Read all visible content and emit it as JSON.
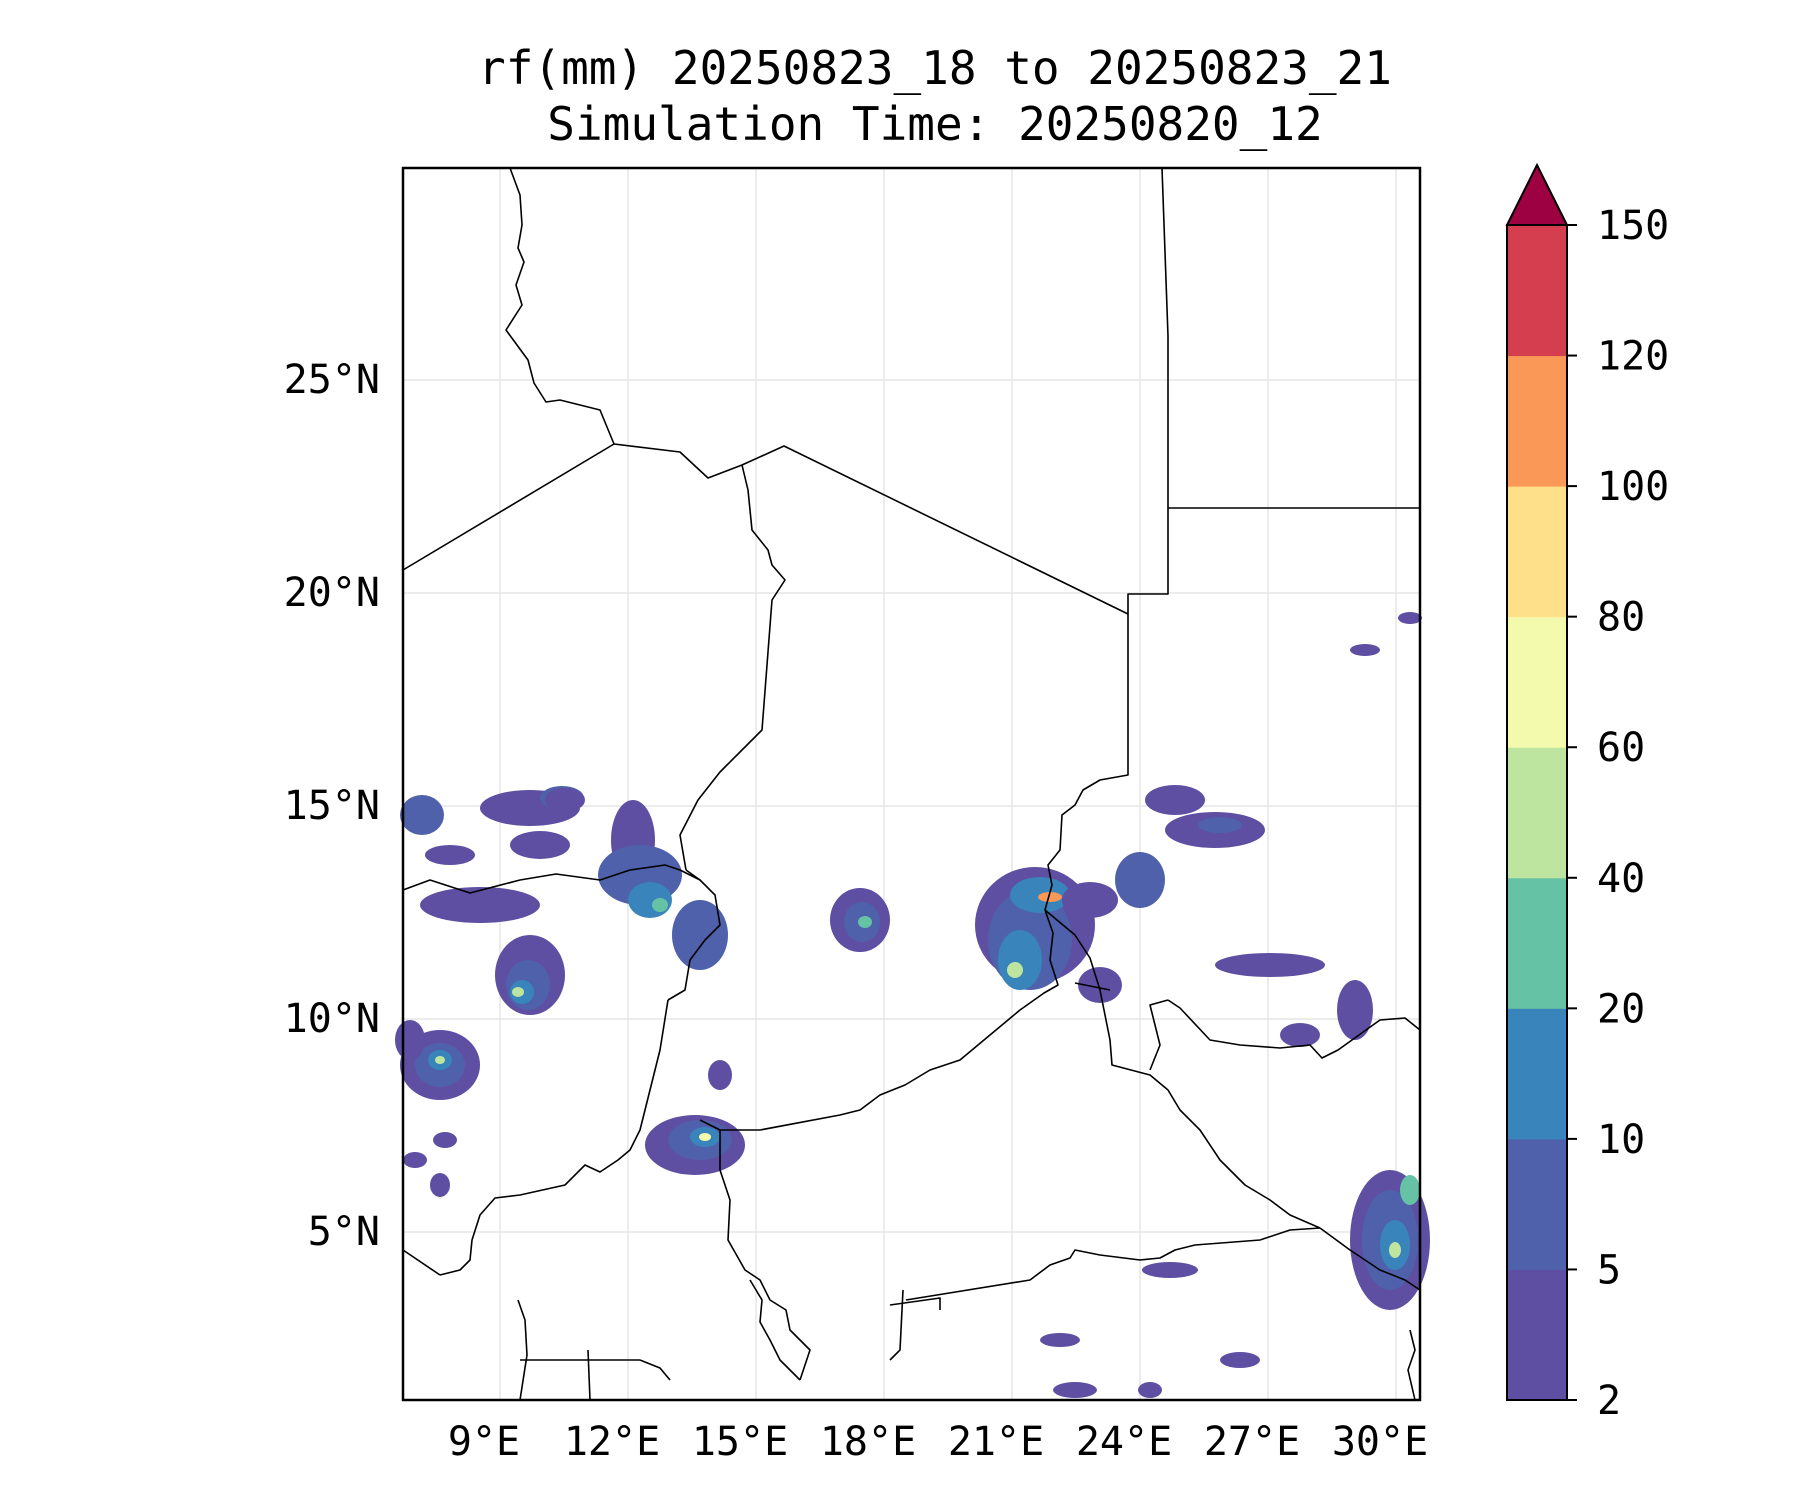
{
  "title": {
    "line1": "rf(mm) 20250823_18 to 20250823_21",
    "line2": "Simulation Time: 20250820_12"
  },
  "map": {
    "lon_ticks": [
      "9°E",
      "12°E",
      "15°E",
      "18°E",
      "21°E",
      "24°E",
      "27°E",
      "30°E"
    ],
    "lat_ticks": [
      "25°N",
      "20°N",
      "15°N",
      "10°N",
      "5°N"
    ],
    "gridlines": true,
    "colors": {
      "border": "#000000",
      "grid": "#e6e6e6"
    }
  },
  "colorbar": {
    "labels": [
      "2",
      "5",
      "10",
      "20",
      "40",
      "60",
      "80",
      "100",
      "120",
      "150"
    ],
    "colors": [
      "#5e4fa2",
      "#4f61aa",
      "#3884bb",
      "#66c2a5",
      "#bee5a0",
      "#f3faad",
      "#fee08b",
      "#fa9857",
      "#d53e4f"
    ],
    "extend_color": "#9e0142"
  }
}
